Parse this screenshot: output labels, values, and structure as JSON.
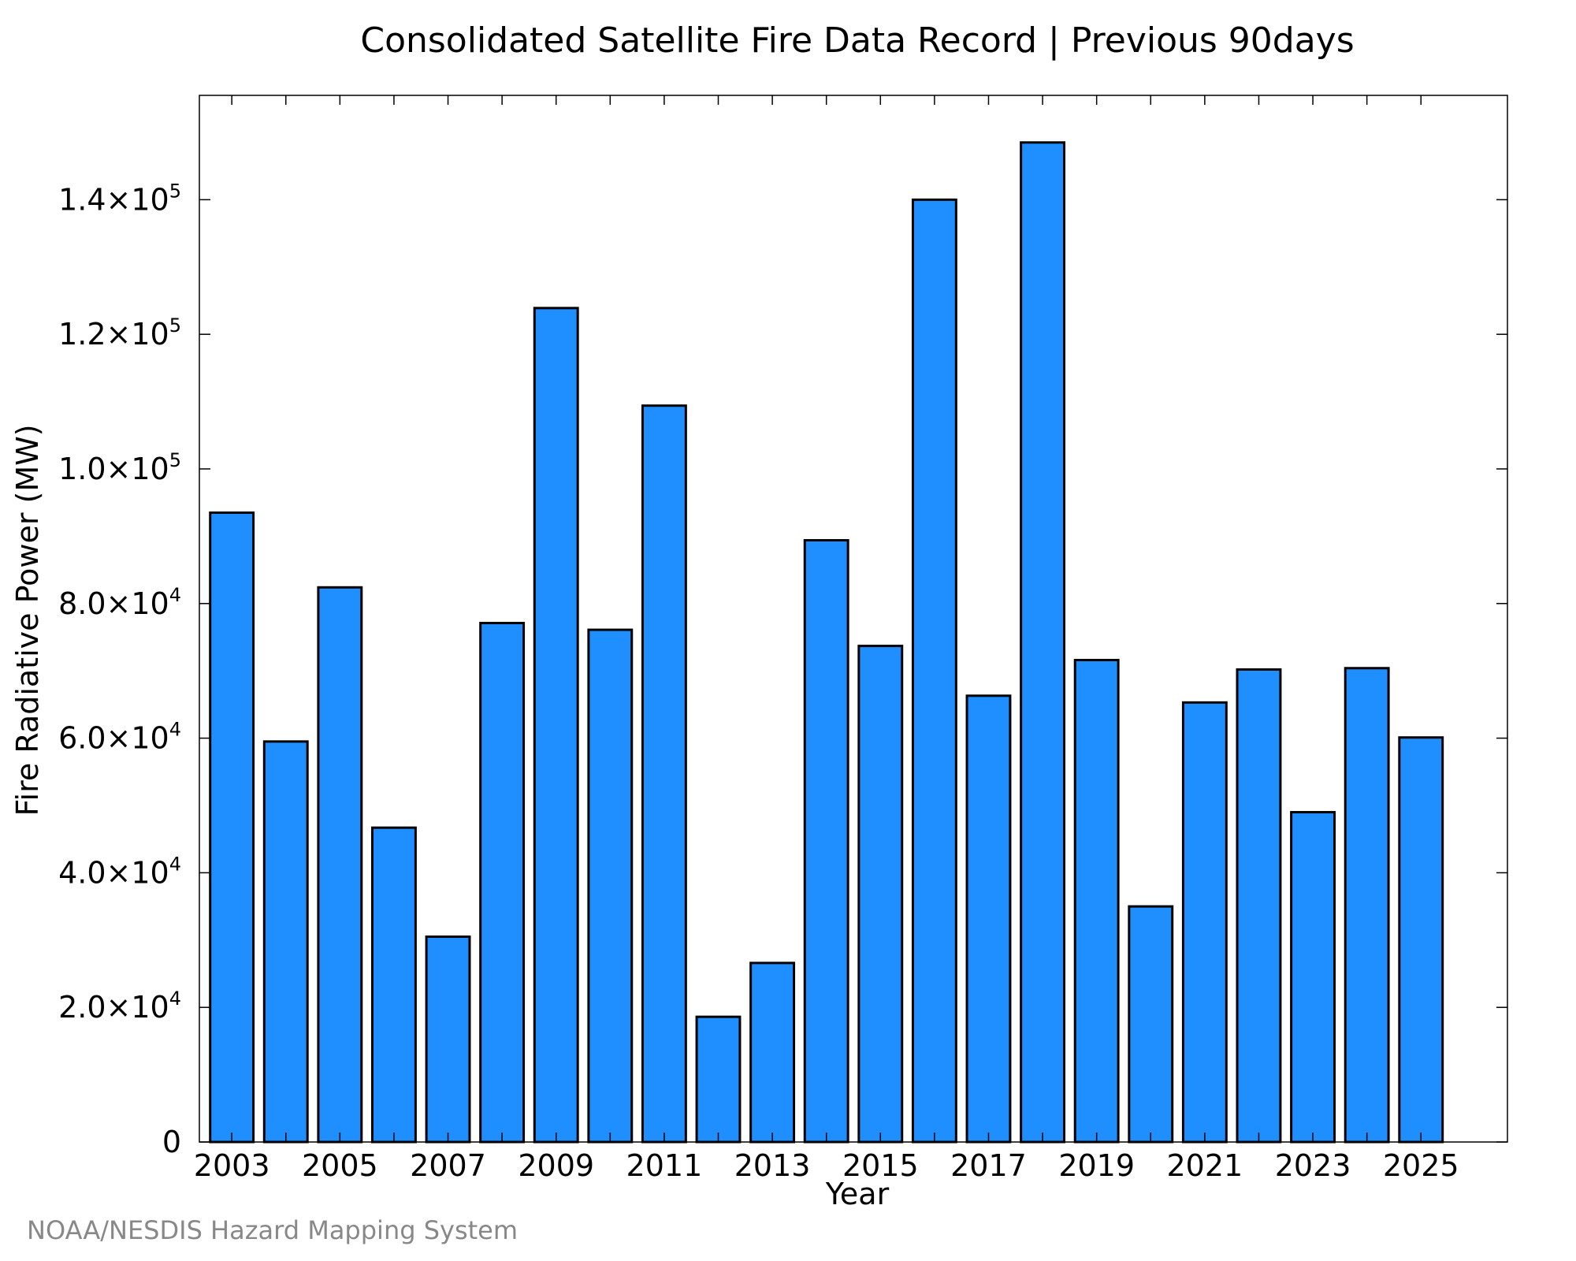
{
  "chart_data": {
    "type": "bar",
    "title": "Consolidated Satellite Fire Data Record | Previous 90days",
    "xlabel": "Year",
    "ylabel": "Fire Radiative Power (MW)",
    "categories": [
      2003,
      2004,
      2005,
      2006,
      2007,
      2008,
      2009,
      2010,
      2011,
      2012,
      2013,
      2014,
      2015,
      2016,
      2017,
      2018,
      2019,
      2020,
      2021,
      2022,
      2023,
      2024,
      2025
    ],
    "values": [
      93500,
      59500,
      82400,
      46700,
      30500,
      77100,
      123900,
      76100,
      109400,
      18600,
      26600,
      89400,
      73700,
      140000,
      66300,
      148500,
      71600,
      35000,
      65300,
      70200,
      49000,
      70400,
      60100
    ],
    "x_tick_labels": [
      "2003",
      "2005",
      "2007",
      "2009",
      "2011",
      "2013",
      "2015",
      "2017",
      "2019",
      "2021",
      "2023",
      "2025"
    ],
    "y_ticks": [
      {
        "value": 0,
        "mantissa": "0",
        "exponent": ""
      },
      {
        "value": 20000,
        "mantissa": "2.0×10",
        "exponent": "4"
      },
      {
        "value": 40000,
        "mantissa": "4.0×10",
        "exponent": "4"
      },
      {
        "value": 60000,
        "mantissa": "6.0×10",
        "exponent": "4"
      },
      {
        "value": 80000,
        "mantissa": "8.0×10",
        "exponent": "4"
      },
      {
        "value": 100000,
        "mantissa": "1.0×10",
        "exponent": "5"
      },
      {
        "value": 120000,
        "mantissa": "1.2×10",
        "exponent": "5"
      },
      {
        "value": 140000,
        "mantissa": "1.4×10",
        "exponent": "5"
      }
    ],
    "ylim": [
      0,
      155500
    ],
    "xlim": [
      2002.4,
      2026.6
    ],
    "grid": false,
    "colors": {
      "bar_fill": "#1f8fff",
      "bar_stroke": "#000000",
      "credit_text": "#888888"
    }
  },
  "credit": "NOAA/NESDIS Hazard Mapping System"
}
